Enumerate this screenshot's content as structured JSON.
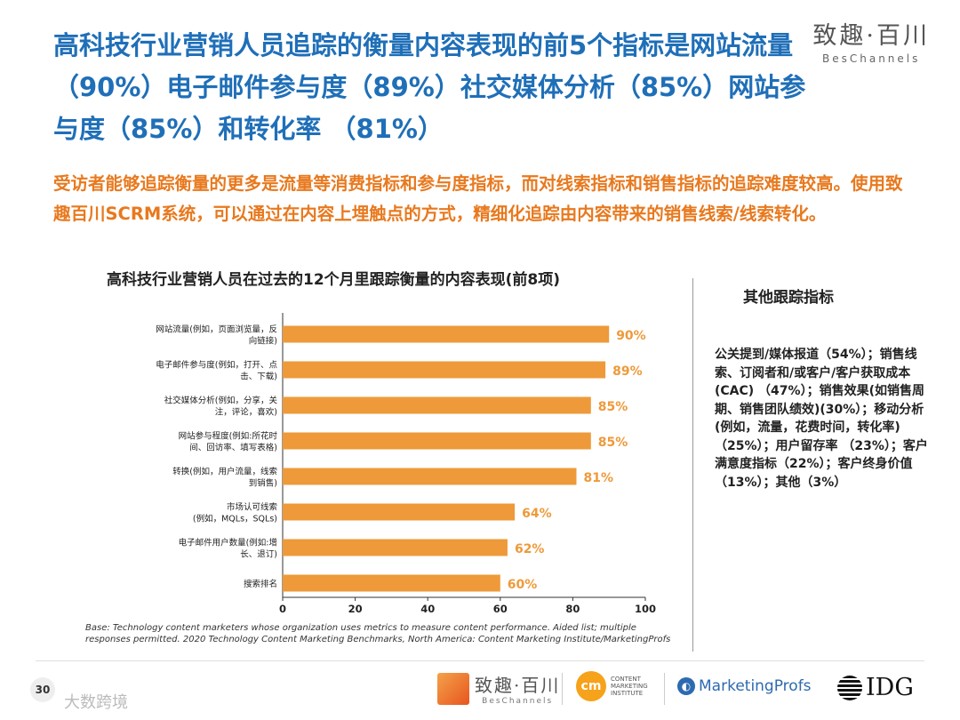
{
  "header": {
    "title": "高科技行业营销人员追踪的衡量内容表现的前5个指标是网站流量（90%）电子邮件参与度（89%）社交媒体分析（85%）网站参与度（85%）和转化率 （81%）",
    "logo_cn": "致趣·百川",
    "logo_en": "BesChannels"
  },
  "subtitle": "受访者能够追踪衡量的更多是流量等消费指标和参与度指标，而对线索指标和销售指标的追踪难度较高。使用致趣百川SCRM系统，可以通过在内容上埋触点的方式，精细化追踪由内容带来的销售线索/线索转化。",
  "chart_data": {
    "type": "bar",
    "orientation": "horizontal",
    "title": "高科技行业营销人员在过去的12个月里跟踪衡量的内容表现(前8项)",
    "categories": [
      [
        "网站流量(例如，页面浏览量，反",
        "向链接)"
      ],
      [
        "电子邮件参与度(例如，打开、点",
        "击、下载)"
      ],
      [
        "社交媒体分析(例如，分享，关",
        "注，评论，喜欢)"
      ],
      [
        "网站参与程度(例如:所花时",
        "间、回访率、填写表格)"
      ],
      [
        "转换(例如，用户流量，线索",
        "到销售)"
      ],
      [
        "市场认可线索",
        "(例如，MQLs，SQLs)"
      ],
      [
        "电子邮件用户数量(例如:增",
        "长、退订)"
      ],
      [
        "搜索排名"
      ]
    ],
    "values": [
      90,
      89,
      85,
      85,
      81,
      64,
      62,
      60
    ],
    "value_labels": [
      "90%",
      "89%",
      "85%",
      "85%",
      "81%",
      "64%",
      "62%",
      "60%"
    ],
    "xlim": [
      0,
      100
    ],
    "xticks": [
      "0",
      "20",
      "40",
      "60",
      "80",
      "100"
    ],
    "bar_color": "#ee9a3a",
    "label_color": "#ee9a3a",
    "xlabel": "",
    "ylabel": ""
  },
  "sidebar": {
    "title": "其他跟踪指标",
    "text": "公关提到/媒体报道（54%）；销售线索、订阅者和/或客户/客户获取成本(CAC) （47%）；销售效果(如销售周期、销售团队绩效)(30%）；移动分析(例如，流量，花费时间，转化率) （25%）；用户留存率 （23%）；客户满意度指标（22%）；客户终身价值（13%）；其他（3%）"
  },
  "base_note": "Base: Technology content marketers whose organization uses metrics to measure content performance. Aided list; multiple responses permitted. 2020 Technology Content Marketing Benchmarks, North America: Content Marketing Institute/MarketingProfs",
  "footer": {
    "page_number": "30",
    "watermark": "大数跨境",
    "bes_cn": "致趣·百川",
    "bes_en": "BesChannels",
    "cmi_mark": "cm",
    "cmi_text": [
      "CONTENT",
      "MARKETING",
      "INSTITUTE"
    ],
    "mp_text": "MarketingProfs",
    "idg_text": "IDG"
  }
}
